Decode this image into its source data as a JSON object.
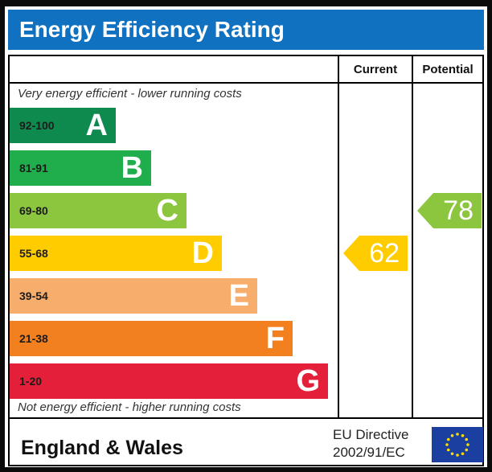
{
  "title": "Energy Efficiency Rating",
  "headers": {
    "current": "Current",
    "potential": "Potential"
  },
  "top_caption": "Very energy efficient - lower running costs",
  "bottom_caption": "Not energy efficient - higher running costs",
  "footer": {
    "region": "England & Wales",
    "directive_line1": "EU Directive",
    "directive_line2": "2002/91/EC"
  },
  "colors": {
    "title_bar": "#1071c0",
    "A": "#0f8a4e",
    "B": "#1fae4b",
    "C": "#8cc63f",
    "D": "#ffcc00",
    "E": "#f7ad6b",
    "F": "#f2801f",
    "G": "#e41f3a"
  },
  "chart_data": {
    "type": "bar",
    "title": "Energy Efficiency Rating",
    "categories": [
      "A",
      "B",
      "C",
      "D",
      "E",
      "F",
      "G"
    ],
    "bands": [
      {
        "letter": "A",
        "range": "92-100"
      },
      {
        "letter": "B",
        "range": "81-91"
      },
      {
        "letter": "C",
        "range": "69-80"
      },
      {
        "letter": "D",
        "range": "55-68"
      },
      {
        "letter": "E",
        "range": "39-54"
      },
      {
        "letter": "F",
        "range": "21-38"
      },
      {
        "letter": "G",
        "range": "1-20"
      }
    ],
    "series": [
      {
        "name": "Current",
        "value": 62,
        "band": "D"
      },
      {
        "name": "Potential",
        "value": 78,
        "band": "C"
      }
    ]
  }
}
